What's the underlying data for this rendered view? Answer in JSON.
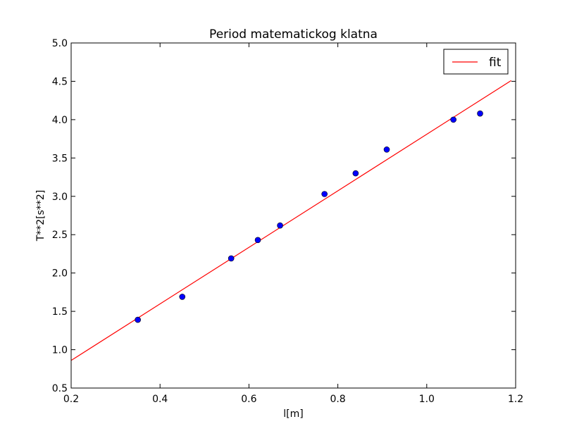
{
  "chart_data": {
    "type": "scatter",
    "title": "Period matematickog klatna",
    "xlabel": "l[m]",
    "ylabel": "T**2[s**2]",
    "xlim": [
      0.2,
      1.2
    ],
    "ylim": [
      0.5,
      5.0
    ],
    "xticks": [
      0.2,
      0.4,
      0.6,
      0.8,
      1.0,
      1.2
    ],
    "xtick_labels": [
      "0.2",
      "0.4",
      "0.6",
      "0.8",
      "1.0",
      "1.2"
    ],
    "yticks": [
      0.5,
      1.0,
      1.5,
      2.0,
      2.5,
      3.0,
      3.5,
      4.0,
      4.5,
      5.0
    ],
    "ytick_labels": [
      "0.5",
      "1.0",
      "1.5",
      "2.0",
      "2.5",
      "3.0",
      "3.5",
      "4.0",
      "4.5",
      "5.0"
    ],
    "grid": false,
    "legend_position": "top-right",
    "series": [
      {
        "type": "scatter",
        "color": "#0000ff",
        "x": [
          0.35,
          0.45,
          0.56,
          0.62,
          0.67,
          0.77,
          0.84,
          0.91,
          1.06,
          1.12
        ],
        "y": [
          1.39,
          1.69,
          2.19,
          2.43,
          2.62,
          3.03,
          3.3,
          3.61,
          4.0,
          4.08
        ]
      },
      {
        "type": "line",
        "name": "fit",
        "color": "#ff0000",
        "x": [
          0.2,
          1.19
        ],
        "y": [
          0.86,
          4.51
        ]
      }
    ]
  }
}
